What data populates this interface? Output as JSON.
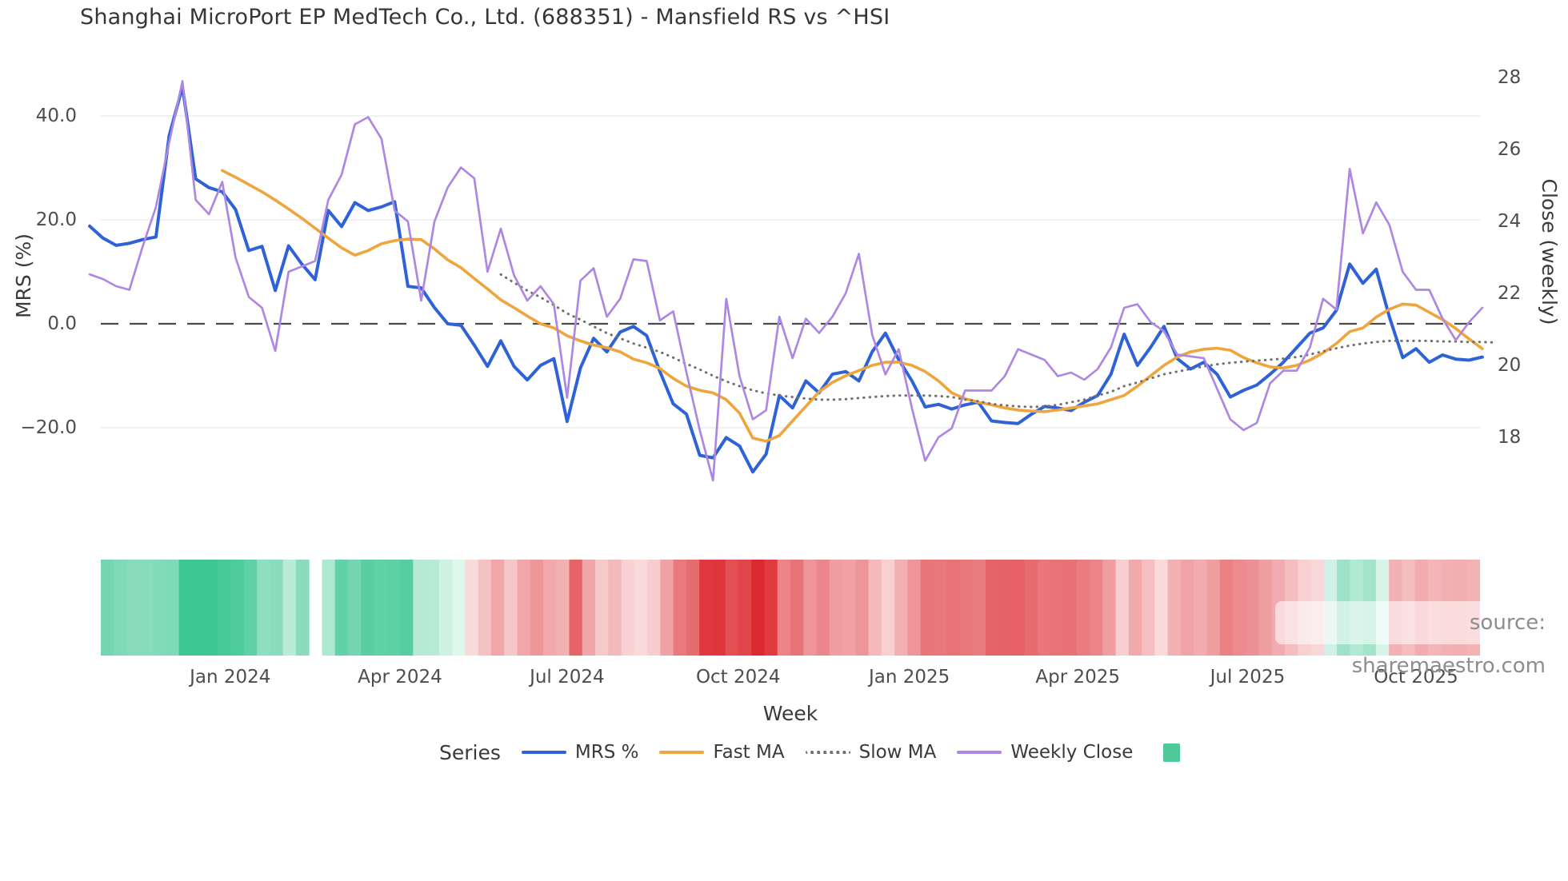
{
  "title": "Shanghai MicroPort EP MedTech Co., Ltd. (688351) - Mansfield RS vs ^HSI",
  "axes": {
    "left_label": "MRS (%)",
    "right_label": "Close (weekly)",
    "x_label": "Week",
    "left_ticks": [
      {
        "label": "40.0",
        "value": 40
      },
      {
        "label": "20.0",
        "value": 20
      },
      {
        "label": "0.0",
        "value": 0
      },
      {
        "label": "−20.0",
        "value": -20
      }
    ],
    "right_ticks": [
      {
        "label": "28",
        "value": 28
      },
      {
        "label": "26",
        "value": 26
      },
      {
        "label": "24",
        "value": 24
      },
      {
        "label": "22",
        "value": 22
      },
      {
        "label": "20",
        "value": 20
      },
      {
        "label": "18",
        "value": 18
      }
    ],
    "x_ticks": [
      {
        "label": "Jan 2024",
        "week": 10.6
      },
      {
        "label": "Apr 2024",
        "week": 23.4
      },
      {
        "label": "Jul 2024",
        "week": 36.0
      },
      {
        "label": "Oct 2024",
        "week": 48.9
      },
      {
        "label": "Jan 2025",
        "week": 61.8
      },
      {
        "label": "Apr 2025",
        "week": 74.5
      },
      {
        "label": "Jul 2025",
        "week": 87.3
      },
      {
        "label": "Oct 2025",
        "week": 100.0
      }
    ]
  },
  "legend": {
    "title": "Series",
    "extra_swatch": {
      "name": "strip-color-swatch",
      "color": "#4fc998"
    }
  },
  "source_note": "source: sharemaestro.com",
  "colors": {
    "grid": "#ebebf2",
    "zero_line": "#4a4a4a",
    "text": "#3a3a3a",
    "tick_text": "#4d4d4d",
    "source_text": "#8d8d8d"
  },
  "chart_data": {
    "type": "line",
    "title": "Shanghai MicroPort EP MedTech Co., Ltd. (688351) - Mansfield RS vs ^HSI",
    "xlabel": "Week",
    "ylabel_left": "MRS (%)",
    "ylabel_right": "Close (weekly)",
    "x_unit": "weekly index, ~Oct 2023 to Nov 2025",
    "n_points": 106,
    "ylim_left": [
      -30,
      47
    ],
    "ylim_right": [
      16.5,
      28.5
    ],
    "grid": "horizontal only, at MRS ticks",
    "legend_position": "bottom",
    "zero_reference_line": 0,
    "series": [
      {
        "name": "MRS %",
        "axis": "left",
        "color": "#2e62d6",
        "style": "solid",
        "width": 4,
        "values": [
          18.8,
          16.5,
          15.1,
          15.5,
          16.2,
          16.7,
          36.2,
          45.6,
          27.9,
          26.2,
          25.4,
          22.0,
          14.1,
          14.9,
          6.4,
          15.0,
          11.5,
          8.5,
          21.8,
          18.7,
          23.3,
          21.8,
          22.5,
          23.5,
          7.2,
          6.9,
          3.1,
          0.0,
          -0.3,
          -4.1,
          -8.2,
          -3.3,
          -8.2,
          -10.8,
          -8.0,
          -6.7,
          -18.8,
          -8.5,
          -2.8,
          -5.4,
          -1.6,
          -0.5,
          -2.3,
          -9.2,
          -15.4,
          -17.4,
          -25.3,
          -25.8,
          -21.9,
          -23.5,
          -28.5,
          -25.1,
          -13.8,
          -16.2,
          -11.0,
          -13.3,
          -9.7,
          -9.2,
          -11.0,
          -5.4,
          -1.8,
          -6.9,
          -11.0,
          -16.0,
          -15.5,
          -16.4,
          -15.6,
          -15.1,
          -18.7,
          -19.0,
          -19.2,
          -17.4,
          -15.9,
          -16.2,
          -16.7,
          -15.1,
          -13.8,
          -9.7,
          -2.0,
          -8.0,
          -4.5,
          -0.5,
          -6.7,
          -8.7,
          -7.4,
          -9.7,
          -14.1,
          -12.8,
          -11.8,
          -9.7,
          -7.4,
          -4.6,
          -1.8,
          -0.8,
          2.6,
          11.5,
          7.8,
          10.5,
          1.3,
          -6.5,
          -4.8,
          -7.4,
          -6.0,
          -6.8,
          -7.0,
          -6.4
        ]
      },
      {
        "name": "Fast MA",
        "axis": "left",
        "color": "#efa53d",
        "style": "solid",
        "width": 3.6,
        "values": [
          null,
          null,
          null,
          null,
          null,
          null,
          null,
          null,
          null,
          null,
          29.5,
          28.2,
          26.8,
          25.4,
          23.8,
          22.1,
          20.3,
          18.4,
          16.5,
          14.6,
          13.2,
          14.1,
          15.4,
          16.0,
          16.3,
          16.2,
          14.4,
          12.3,
          10.8,
          8.7,
          6.7,
          4.6,
          3.1,
          1.5,
          0.0,
          -0.8,
          -2.3,
          -3.3,
          -4.1,
          -4.6,
          -5.4,
          -6.8,
          -7.5,
          -8.6,
          -10.5,
          -12.0,
          -12.8,
          -13.3,
          -14.6,
          -17.2,
          -22.0,
          -22.6,
          -21.5,
          -18.7,
          -15.9,
          -13.1,
          -11.3,
          -10.0,
          -9.0,
          -8.0,
          -7.4,
          -7.4,
          -8.0,
          -9.2,
          -11.0,
          -13.3,
          -14.4,
          -15.1,
          -15.6,
          -16.2,
          -16.6,
          -16.8,
          -16.9,
          -16.6,
          -16.2,
          -15.8,
          -15.4,
          -14.6,
          -13.8,
          -12.0,
          -10.0,
          -8.0,
          -6.4,
          -5.4,
          -4.9,
          -4.7,
          -5.1,
          -6.5,
          -7.5,
          -8.3,
          -8.5,
          -8.0,
          -7.0,
          -5.6,
          -3.8,
          -1.5,
          -0.8,
          1.3,
          2.8,
          3.8,
          3.6,
          2.2,
          0.8,
          -0.9,
          -2.9,
          -4.8
        ]
      },
      {
        "name": "Slow MA",
        "axis": "left",
        "color": "#707070",
        "style": "dotted",
        "width": 3,
        "values": [
          null,
          null,
          null,
          null,
          null,
          null,
          null,
          null,
          null,
          null,
          null,
          null,
          null,
          null,
          null,
          null,
          null,
          null,
          null,
          null,
          null,
          null,
          null,
          null,
          null,
          null,
          null,
          null,
          null,
          null,
          null,
          9.5,
          7.9,
          6.4,
          5.1,
          3.6,
          2.0,
          0.8,
          -0.5,
          -1.8,
          -2.8,
          -3.8,
          -4.6,
          -5.4,
          -6.5,
          -7.7,
          -8.8,
          -10.0,
          -11.1,
          -12.0,
          -12.8,
          -13.4,
          -13.8,
          -14.1,
          -14.4,
          -14.6,
          -14.6,
          -14.5,
          -14.3,
          -14.1,
          -13.9,
          -13.8,
          -13.8,
          -13.8,
          -13.9,
          -14.1,
          -14.6,
          -14.9,
          -15.4,
          -15.7,
          -15.9,
          -16.0,
          -15.9,
          -15.6,
          -15.1,
          -14.6,
          -13.8,
          -13.1,
          -12.0,
          -11.3,
          -10.5,
          -9.7,
          -9.2,
          -8.7,
          -8.2,
          -7.8,
          -7.5,
          -7.3,
          -7.1,
          -6.9,
          -6.7,
          -6.4,
          -5.9,
          -5.3,
          -4.7,
          -4.2,
          -3.8,
          -3.5,
          -3.3,
          -3.3,
          -3.3,
          -3.3,
          -3.4,
          -3.4,
          -3.5,
          -3.5,
          -3.6
        ]
      },
      {
        "name": "Weekly Close",
        "axis": "right",
        "color": "#ae87e3",
        "style": "solid",
        "width": 2.7,
        "values": [
          22.53,
          22.4,
          22.2,
          22.1,
          23.3,
          24.4,
          26.2,
          27.9,
          24.6,
          24.2,
          25.1,
          23.0,
          21.9,
          21.6,
          20.4,
          22.6,
          22.75,
          22.9,
          24.6,
          25.3,
          26.7,
          26.9,
          26.3,
          24.3,
          24.0,
          21.8,
          24.0,
          24.95,
          25.5,
          25.2,
          22.6,
          23.8,
          22.5,
          21.8,
          22.2,
          21.7,
          19.1,
          22.35,
          22.7,
          21.35,
          21.85,
          22.95,
          22.9,
          21.25,
          21.5,
          19.8,
          18.2,
          16.8,
          21.85,
          19.7,
          18.5,
          18.75,
          21.35,
          20.2,
          21.3,
          20.9,
          21.35,
          22.0,
          23.1,
          20.85,
          19.75,
          20.45,
          18.8,
          17.35,
          18.0,
          18.25,
          19.3,
          19.3,
          19.3,
          19.7,
          20.45,
          20.3,
          20.15,
          19.7,
          19.8,
          19.6,
          19.9,
          20.5,
          21.6,
          21.7,
          21.2,
          20.95,
          20.3,
          20.25,
          20.2,
          19.35,
          18.5,
          18.2,
          18.4,
          19.5,
          19.85,
          19.85,
          20.5,
          21.85,
          21.55,
          25.46,
          23.67,
          24.53,
          23.9,
          22.6,
          22.1,
          22.1,
          21.3,
          20.7,
          21.2,
          21.6
        ]
      }
    ],
    "strip": {
      "description": "weekly heat strip under plot, color-coded by MRS % sign and magnitude",
      "derived_from": "MRS %",
      "gap_weeks": [
        16
      ],
      "positive_color_max": "#2dbd85",
      "negative_color_max": "#e8504f",
      "neutral_color": "#ffffff"
    }
  }
}
